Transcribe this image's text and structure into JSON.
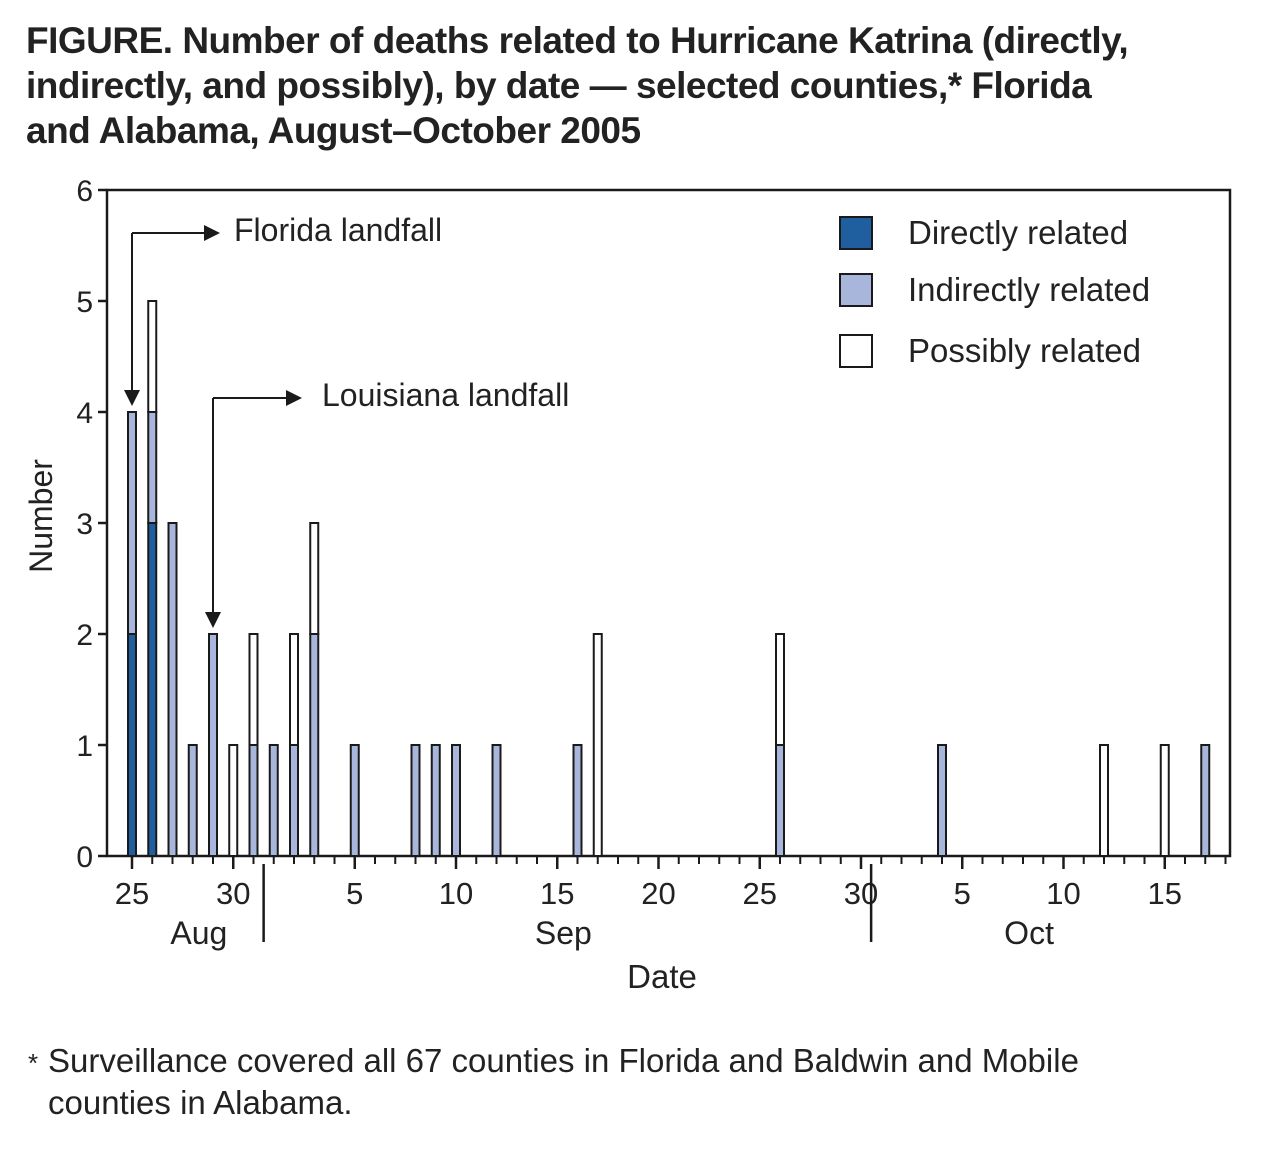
{
  "title_lines": [
    "FIGURE. Number of deaths related to Hurricane Katrina (directly,",
    "indirectly, and possibly), by date — selected counties,* Florida",
    "and Alabama, August–October 2005"
  ],
  "footnote": {
    "mark": "*",
    "lines": [
      "Surveillance covered all 67 counties in Florida and Baldwin and Mobile",
      "counties in Alabama."
    ]
  },
  "colors": {
    "directly": "#1f5fa0",
    "indirectly": "#a9b6dc",
    "possibly": "#ffffff",
    "outline": "#1a1a1a"
  },
  "chart_data": {
    "type": "bar",
    "stacked": true,
    "xlabel": "Date",
    "ylabel": "Number",
    "ylim": [
      0,
      6
    ],
    "yticks": [
      0,
      1,
      2,
      3,
      4,
      5,
      6
    ],
    "grid": false,
    "legend_position": "top-right",
    "x_range": [
      "2005-08-25",
      "2005-10-18"
    ],
    "x_tick_labels": [
      {
        "date": "2005-08-25",
        "label": "25"
      },
      {
        "date": "2005-08-30",
        "label": "30"
      },
      {
        "date": "2005-09-05",
        "label": "5"
      },
      {
        "date": "2005-09-10",
        "label": "10"
      },
      {
        "date": "2005-09-15",
        "label": "15"
      },
      {
        "date": "2005-09-20",
        "label": "20"
      },
      {
        "date": "2005-09-25",
        "label": "25"
      },
      {
        "date": "2005-09-30",
        "label": "30"
      },
      {
        "date": "2005-10-05",
        "label": "5"
      },
      {
        "date": "2005-10-10",
        "label": "10"
      },
      {
        "date": "2005-10-15",
        "label": "15"
      }
    ],
    "months": [
      {
        "label": "Aug",
        "center": "2005-08-28"
      },
      {
        "label": "Sep",
        "center": "2005-09-15"
      },
      {
        "label": "Oct",
        "center": "2005-10-08"
      }
    ],
    "month_dividers": [
      "2005-08-31",
      "2005-09-30"
    ],
    "series": [
      {
        "name": "Directly related",
        "key": "directly"
      },
      {
        "name": "Indirectly related",
        "key": "indirectly"
      },
      {
        "name": "Possibly related",
        "key": "possibly"
      }
    ],
    "bars": [
      {
        "date": "2005-08-25",
        "directly": 2,
        "indirectly": 2,
        "possibly": 0
      },
      {
        "date": "2005-08-26",
        "directly": 3,
        "indirectly": 1,
        "possibly": 1
      },
      {
        "date": "2005-08-27",
        "directly": 0,
        "indirectly": 3,
        "possibly": 0
      },
      {
        "date": "2005-08-28",
        "directly": 0,
        "indirectly": 1,
        "possibly": 0
      },
      {
        "date": "2005-08-29",
        "directly": 0,
        "indirectly": 2,
        "possibly": 0
      },
      {
        "date": "2005-08-30",
        "directly": 0,
        "indirectly": 0,
        "possibly": 1
      },
      {
        "date": "2005-08-31",
        "directly": 0,
        "indirectly": 1,
        "possibly": 1
      },
      {
        "date": "2005-09-01",
        "directly": 0,
        "indirectly": 1,
        "possibly": 0
      },
      {
        "date": "2005-09-02",
        "directly": 0,
        "indirectly": 1,
        "possibly": 1
      },
      {
        "date": "2005-09-03",
        "directly": 0,
        "indirectly": 2,
        "possibly": 1
      },
      {
        "date": "2005-09-05",
        "directly": 0,
        "indirectly": 1,
        "possibly": 0
      },
      {
        "date": "2005-09-08",
        "directly": 0,
        "indirectly": 1,
        "possibly": 0
      },
      {
        "date": "2005-09-09",
        "directly": 0,
        "indirectly": 1,
        "possibly": 0
      },
      {
        "date": "2005-09-10",
        "directly": 0,
        "indirectly": 1,
        "possibly": 0
      },
      {
        "date": "2005-09-12",
        "directly": 0,
        "indirectly": 1,
        "possibly": 0
      },
      {
        "date": "2005-09-16",
        "directly": 0,
        "indirectly": 1,
        "possibly": 0
      },
      {
        "date": "2005-09-17",
        "directly": 0,
        "indirectly": 0,
        "possibly": 2
      },
      {
        "date": "2005-09-26",
        "directly": 0,
        "indirectly": 1,
        "possibly": 1
      },
      {
        "date": "2005-10-04",
        "directly": 0,
        "indirectly": 1,
        "possibly": 0
      },
      {
        "date": "2005-10-12",
        "directly": 0,
        "indirectly": 0,
        "possibly": 1
      },
      {
        "date": "2005-10-15",
        "directly": 0,
        "indirectly": 0,
        "possibly": 1
      },
      {
        "date": "2005-10-17",
        "directly": 0,
        "indirectly": 1,
        "possibly": 0
      }
    ],
    "annotations": [
      {
        "text": "Florida landfall",
        "date": "2005-08-25"
      },
      {
        "text": "Louisiana landfall",
        "date": "2005-08-29"
      }
    ]
  }
}
